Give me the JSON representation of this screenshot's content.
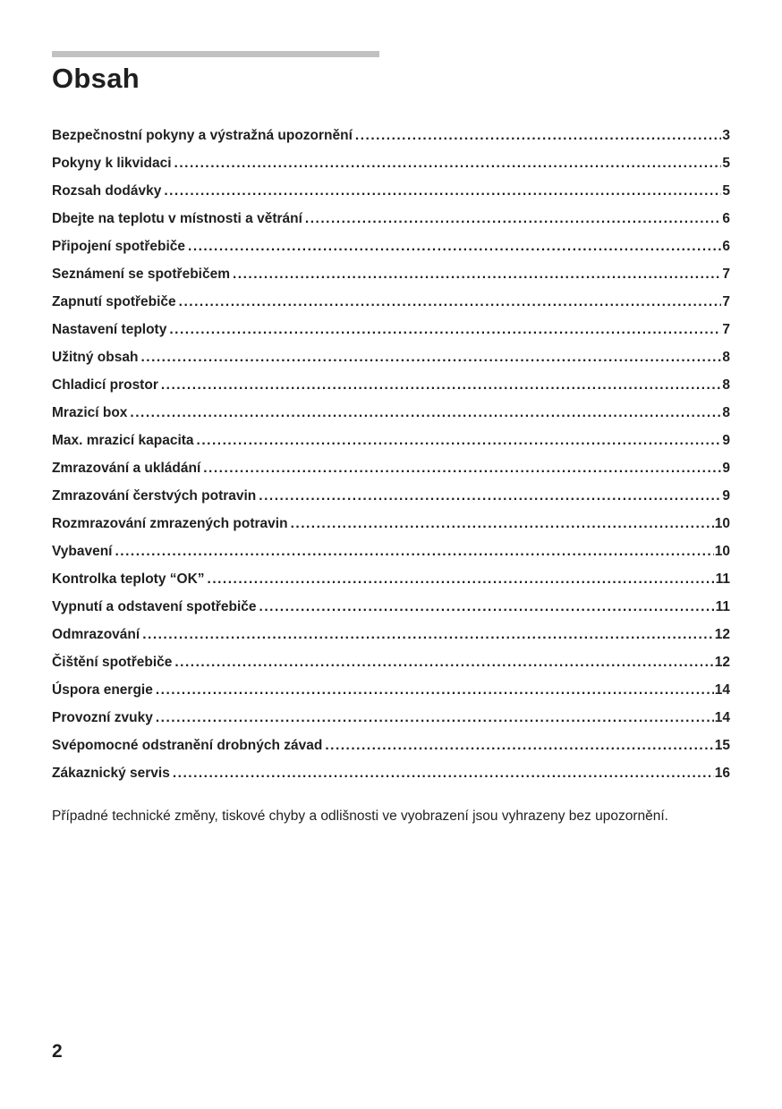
{
  "page": {
    "title": "Obsah",
    "footer_note": "Případné technické změny, tiskové chyby a odlišnosti ve vyobrazení jsou vyhrazeny bez upozornění.",
    "page_number": "2"
  },
  "colors": {
    "text": "#1f1f1f",
    "title_rule": "#c1c1c1",
    "background": "#ffffff"
  },
  "toc": {
    "entries": [
      {
        "label": "Bezpečnostní pokyny a výstražná upozornění",
        "page": "3"
      },
      {
        "label": "Pokyny k likvidaci",
        "page": "5"
      },
      {
        "label": "Rozsah dodávky",
        "page": "5"
      },
      {
        "label": "Dbejte na teplotu v místnosti a větrání",
        "page": "6"
      },
      {
        "label": "Připojení spotřebiče",
        "page": "6"
      },
      {
        "label": "Seznámení se spotřebičem",
        "page": "7"
      },
      {
        "label": "Zapnutí spotřebiče",
        "page": "7"
      },
      {
        "label": "Nastavení teploty",
        "page": "7"
      },
      {
        "label": "Užitný obsah",
        "page": "8"
      },
      {
        "label": "Chladicí prostor",
        "page": "8"
      },
      {
        "label": "Mrazicí box",
        "page": "8"
      },
      {
        "label": "Max. mrazicí kapacita",
        "page": "9"
      },
      {
        "label": "Zmrazování a ukládání",
        "page": "9"
      },
      {
        "label": "Zmrazování čerstvých potravin",
        "page": "9"
      },
      {
        "label": "Rozmrazování zmrazených potravin",
        "page": "10"
      },
      {
        "label": "Vybavení",
        "page": "10"
      },
      {
        "label": "Kontrolka teploty “OK”",
        "page": "11"
      },
      {
        "label": "Vypnutí a odstavení spotřebiče",
        "page": "11"
      },
      {
        "label": "Odmrazování",
        "page": "12"
      },
      {
        "label": "Čištění spotřebiče",
        "page": "12"
      },
      {
        "label": "Úspora energie",
        "page": "14"
      },
      {
        "label": "Provozní zvuky",
        "page": "14"
      },
      {
        "label": "Svépomocné odstranění drobných závad",
        "page": "15"
      },
      {
        "label": "Zákaznický servis",
        "page": "16"
      }
    ]
  }
}
